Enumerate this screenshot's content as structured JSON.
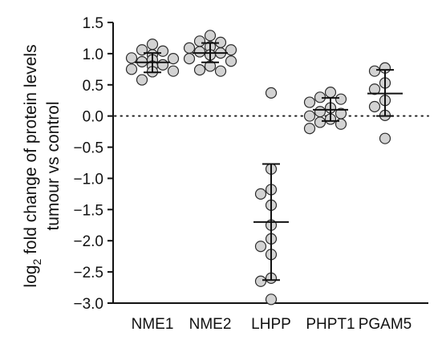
{
  "chart_data": {
    "type": "scatter",
    "ylabel_prefix": "log",
    "ylabel_sub": "2",
    "ylabel_line1_rest": " fold change of protein levels",
    "ylabel_line2": "tumour vs control",
    "ylim": [
      -3.0,
      1.5
    ],
    "yticks": [
      1.5,
      1.0,
      0.5,
      0.0,
      -0.5,
      -1.0,
      -1.5,
      -2.0,
      -2.5,
      -3.0
    ],
    "ytick_labels": [
      "1.5",
      "1.0",
      "0.5",
      "0.0",
      "−0.5",
      "−1.0",
      "−1.5",
      "−2.0",
      "−2.5",
      "−3.0"
    ],
    "reference_line": 0.0,
    "categories": [
      "NME1",
      "NME2",
      "LHPP",
      "PHPT1",
      "PGAM5"
    ],
    "groups": [
      {
        "name": "NME1",
        "mean": 0.86,
        "lower": 0.7,
        "upper": 1.01,
        "points": [
          1.15,
          1.06,
          1.04,
          0.98,
          0.93,
          0.92,
          0.9,
          0.87,
          0.82,
          0.8,
          0.75,
          0.72,
          0.71,
          0.58
        ]
      },
      {
        "name": "NME2",
        "mean": 1.01,
        "lower": 0.86,
        "upper": 1.17,
        "points": [
          1.29,
          1.2,
          1.18,
          1.11,
          1.09,
          1.06,
          1.03,
          1.01,
          0.98,
          0.92,
          0.88,
          0.8,
          0.74,
          0.72
        ]
      },
      {
        "name": "LHPP",
        "mean": -1.7,
        "lower": -2.63,
        "upper": -0.77,
        "points": [
          0.37,
          -0.85,
          -1.18,
          -1.25,
          -1.43,
          -1.75,
          -1.97,
          -2.09,
          -2.22,
          -2.6,
          -2.65,
          -2.94
        ]
      },
      {
        "name": "PHPT1",
        "mean": 0.1,
        "lower": -0.08,
        "upper": 0.29,
        "points": [
          0.38,
          0.3,
          0.27,
          0.22,
          0.13,
          0.07,
          0.04,
          0.0,
          -0.05,
          -0.1,
          -0.13,
          -0.2
        ]
      },
      {
        "name": "PGAM5",
        "mean": 0.36,
        "lower": 0.0,
        "upper": 0.74,
        "points": [
          0.77,
          0.72,
          0.53,
          0.43,
          0.25,
          0.15,
          0.01,
          -0.36
        ]
      }
    ]
  }
}
